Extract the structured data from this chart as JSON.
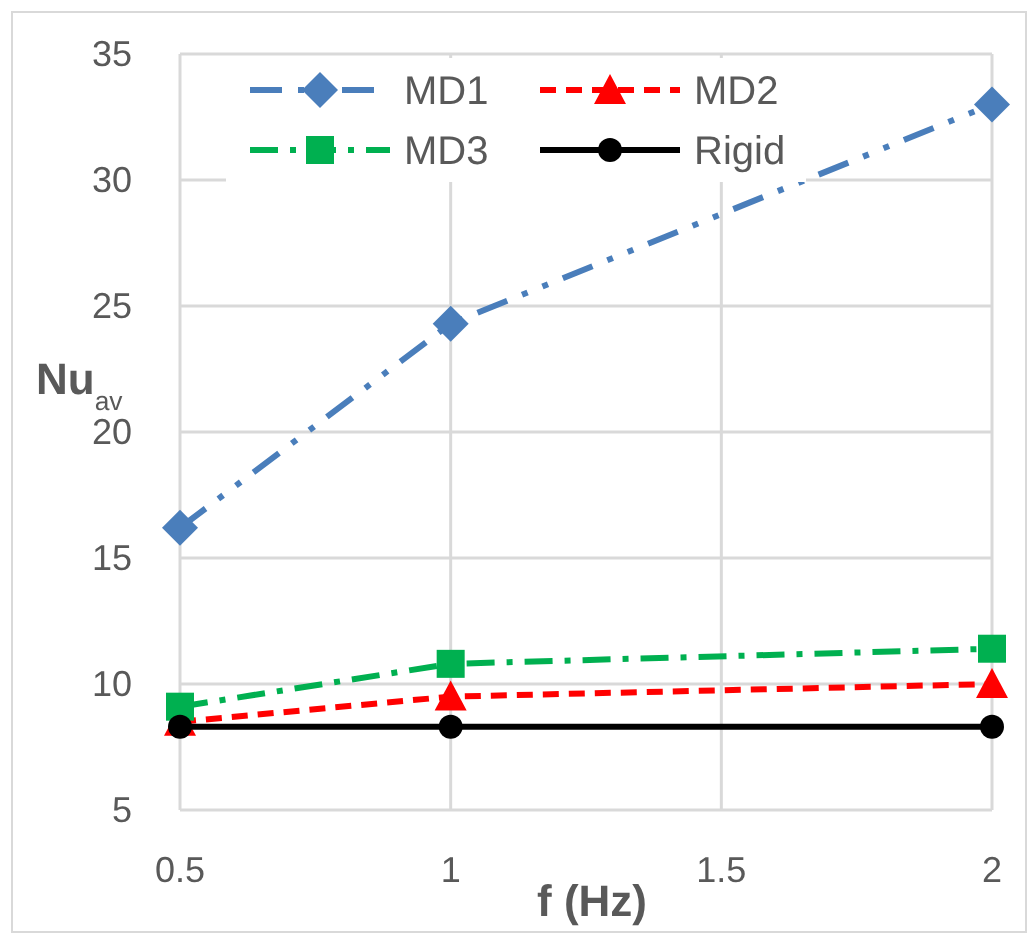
{
  "chart_data": {
    "type": "line",
    "xlabel": "f (Hz)",
    "ylabel": "Nu$_{av}$",
    "x": [
      0.5,
      1,
      2
    ],
    "series": [
      {
        "name": "MD1",
        "color": "#4a7ebb",
        "values": [
          16.2,
          24.3,
          33.0
        ],
        "marker": "diamond",
        "line_style": "dashdotdot"
      },
      {
        "name": "MD2",
        "color": "#ff0000",
        "values": [
          8.5,
          9.5,
          10.0
        ],
        "marker": "triangle",
        "line_style": "dashed"
      },
      {
        "name": "MD3",
        "color": "#00b050",
        "values": [
          9.1,
          10.8,
          11.4
        ],
        "marker": "square",
        "line_style": "dashdot"
      },
      {
        "name": "Rigid",
        "color": "#000000",
        "values": [
          8.3,
          8.3,
          8.3
        ],
        "marker": "circle",
        "line_style": "solid"
      }
    ],
    "xlim": [
      0.5,
      2
    ],
    "xticks": [
      0.5,
      1,
      1.5,
      2
    ],
    "ylim": [
      5,
      35
    ],
    "yticks": [
      5,
      10,
      15,
      20,
      25,
      30,
      35
    ],
    "grid": true,
    "legend": "top"
  }
}
